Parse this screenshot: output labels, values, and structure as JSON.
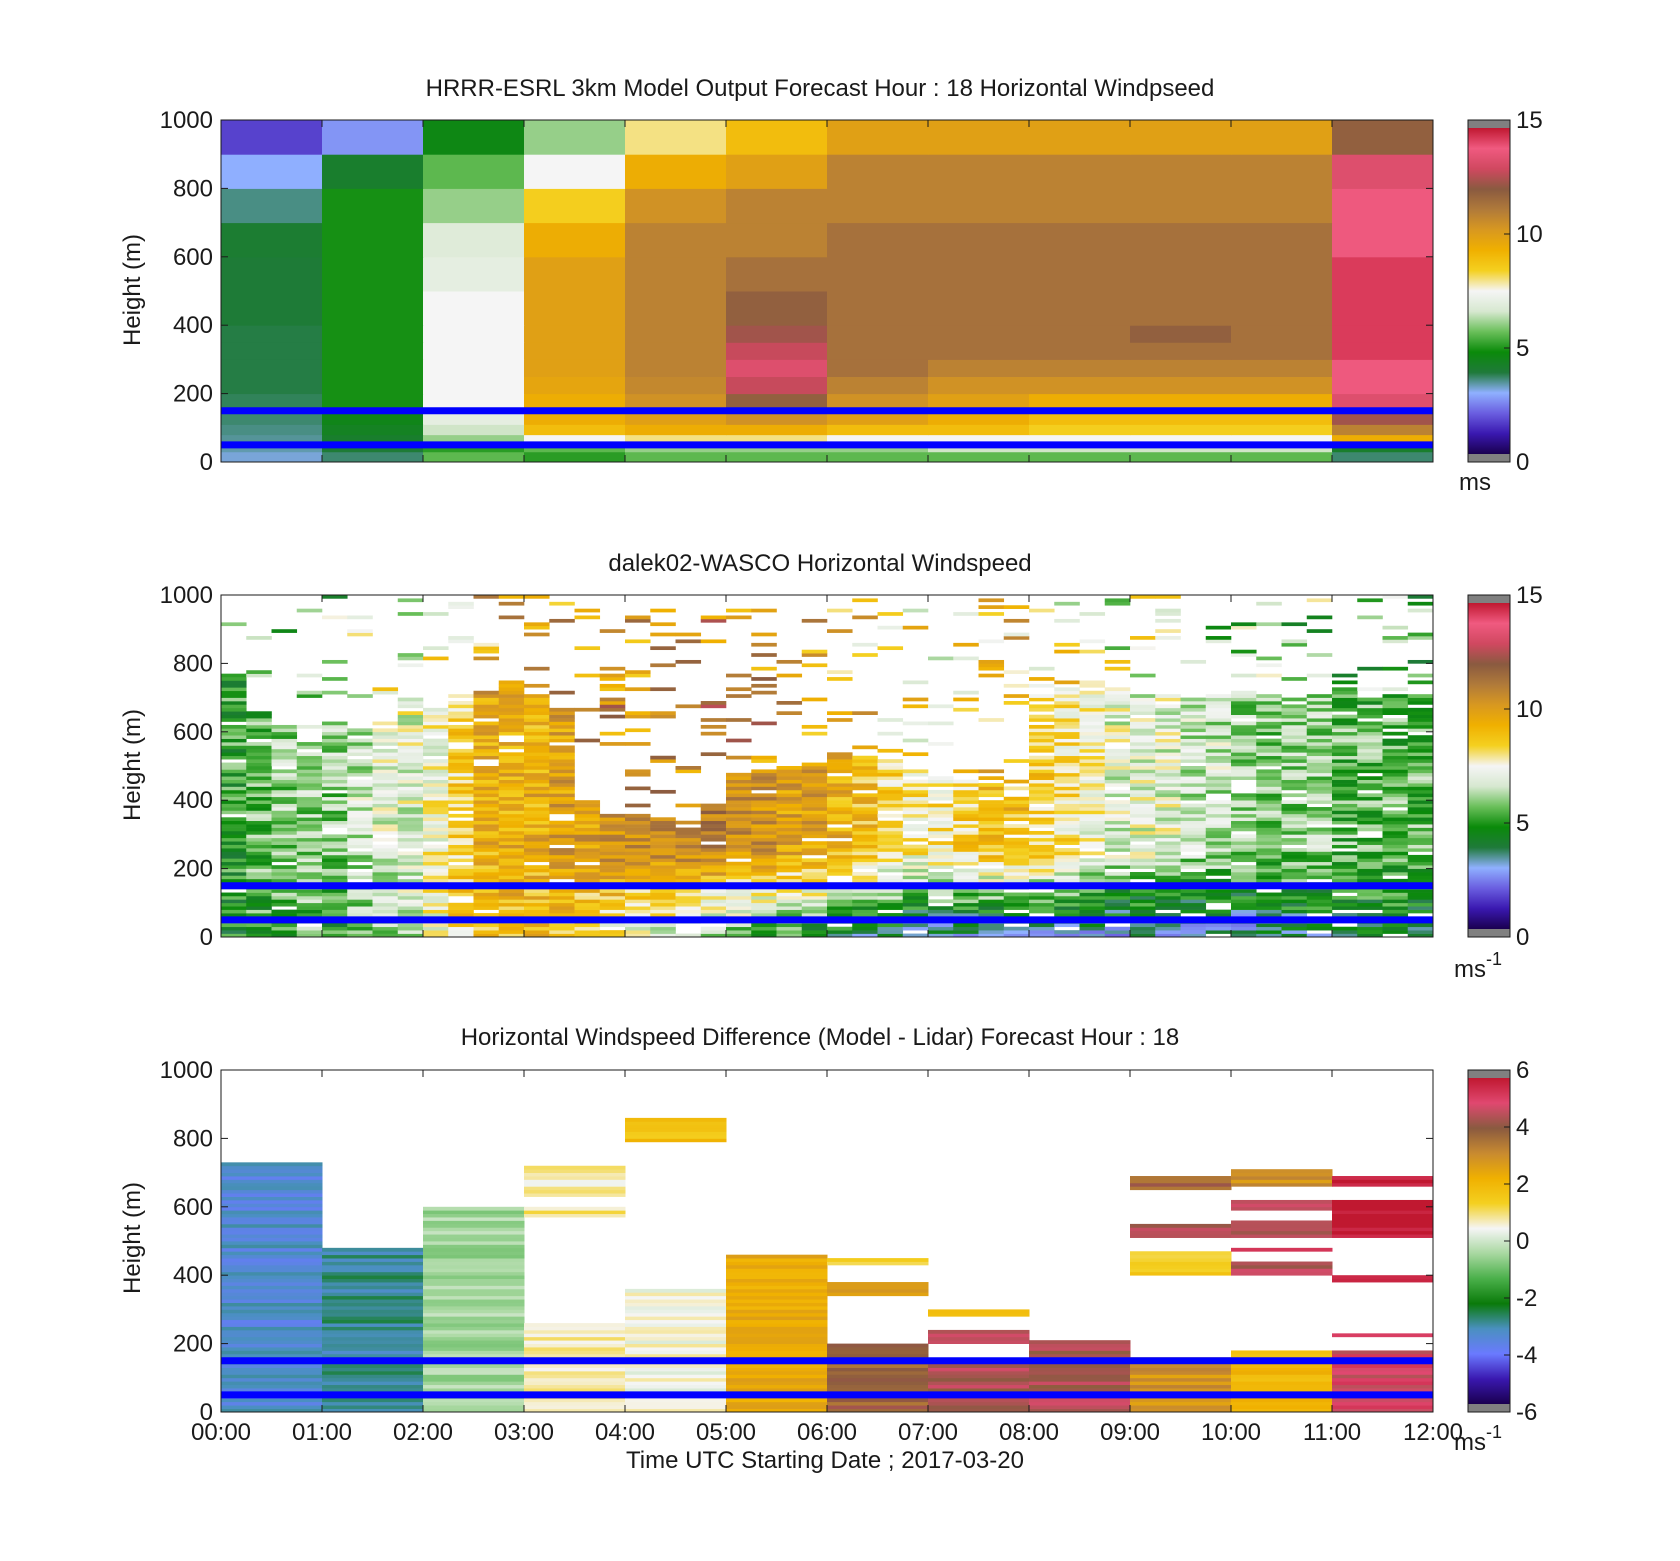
{
  "colors": {
    "overlay_line": "#0000ff",
    "speed_scale": [
      "#1a0050",
      "#3a18b0",
      "#6a5ee0",
      "#8fb0ff",
      "#1f7a3a",
      "#0a8a0a",
      "#6abf5a",
      "#d7e8d0",
      "#f5f5f5",
      "#f4d020",
      "#f0b000",
      "#d89820",
      "#b07a3a",
      "#8a5a40",
      "#d04860",
      "#f05a80",
      "#c01830"
    ],
    "diff_scale": [
      "#1a0050",
      "#3a18b0",
      "#6a7aff",
      "#4a90c0",
      "#0a7a0a",
      "#4ab04a",
      "#a8d8a0",
      "#f5f5f5",
      "#f4d020",
      "#f0b000",
      "#c88a30",
      "#8a5a40",
      "#e04870",
      "#c01830"
    ]
  },
  "chart_data": [
    {
      "type": "heatmap",
      "title": "HRRR-ESRL 3km Model Output   Forecast Hour : 18 Horizontal Windpseed",
      "ylabel": "Height (m)",
      "xlabel": "",
      "x_ticks": [
        "00:00",
        "01:00",
        "02:00",
        "03:00",
        "04:00",
        "05:00",
        "06:00",
        "07:00",
        "08:00",
        "09:00",
        "10:00",
        "11:00",
        "12:00"
      ],
      "xlim": [
        0,
        12
      ],
      "y_ticks": [
        "0",
        "200",
        "400",
        "600",
        "800",
        "1000"
      ],
      "ylim": [
        0,
        1000
      ],
      "colorbar": {
        "ticks": [
          "0",
          "5",
          "10",
          "15"
        ],
        "range": [
          0,
          15
        ],
        "unit": "ms"
      },
      "overlay_heights_m": [
        150,
        50
      ],
      "columns_time_h": [
        0,
        1,
        2,
        3,
        4,
        5,
        6,
        7,
        8,
        9,
        10,
        11
      ],
      "level_tops_m": [
        30,
        50,
        80,
        110,
        150,
        200,
        250,
        300,
        350,
        400,
        500,
        600,
        700,
        800,
        900,
        1000
      ],
      "values_ms": [
        [
          3.0,
          3.5,
          5.5,
          5.0,
          5.5,
          5.5,
          5.5,
          5.5,
          5.5,
          5.5,
          5.5,
          3.5
        ],
        [
          3.2,
          3.8,
          5.0,
          5.5,
          6.0,
          6.0,
          6.0,
          6.5,
          6.5,
          6.5,
          6.5,
          4.0
        ],
        [
          3.3,
          4.0,
          6.0,
          7.5,
          8.0,
          8.0,
          7.5,
          7.5,
          7.5,
          7.5,
          7.5,
          9.5
        ],
        [
          3.4,
          4.2,
          6.5,
          9.0,
          9.5,
          9.5,
          9.0,
          9.0,
          8.5,
          8.5,
          8.5,
          11.0
        ],
        [
          3.5,
          4.4,
          7.0,
          9.5,
          10.0,
          10.5,
          10.0,
          9.5,
          9.0,
          9.0,
          9.0,
          12.5
        ],
        [
          3.6,
          4.8,
          7.5,
          9.5,
          10.5,
          12.0,
          10.5,
          10.0,
          9.5,
          9.5,
          9.5,
          13.5
        ],
        [
          3.7,
          4.8,
          7.5,
          9.8,
          10.8,
          13.0,
          11.0,
          10.5,
          10.5,
          10.5,
          10.5,
          14.0
        ],
        [
          3.7,
          4.8,
          7.5,
          10.0,
          11.0,
          13.5,
          11.5,
          11.0,
          11.0,
          11.0,
          11.0,
          14.0
        ],
        [
          3.7,
          4.8,
          7.5,
          10.0,
          11.0,
          13.0,
          11.5,
          11.5,
          11.5,
          11.5,
          11.5,
          14.5
        ],
        [
          3.7,
          4.8,
          7.5,
          10.0,
          11.0,
          12.5,
          11.5,
          11.5,
          11.5,
          12.0,
          11.5,
          14.5
        ],
        [
          3.8,
          4.8,
          7.5,
          10.0,
          11.0,
          12.0,
          11.5,
          11.5,
          11.5,
          11.5,
          11.5,
          14.5
        ],
        [
          3.8,
          4.8,
          7.0,
          10.0,
          11.0,
          11.5,
          11.5,
          11.5,
          11.5,
          11.5,
          11.5,
          14.5
        ],
        [
          3.9,
          4.8,
          6.8,
          9.5,
          11.0,
          11.0,
          11.5,
          11.5,
          11.5,
          11.5,
          11.5,
          14.0
        ],
        [
          3.4,
          4.8,
          6.0,
          8.5,
          10.5,
          11.0,
          11.0,
          11.0,
          11.0,
          11.0,
          11.0,
          14.0
        ],
        [
          2.8,
          4.0,
          5.5,
          7.5,
          9.5,
          10.0,
          11.0,
          11.0,
          11.0,
          11.0,
          11.0,
          13.5
        ],
        [
          1.5,
          2.5,
          4.5,
          6.0,
          8.0,
          9.0,
          10.0,
          10.0,
          10.0,
          10.0,
          10.0,
          12.0
        ]
      ]
    },
    {
      "type": "heatmap",
      "title": "dalek02-WASCO  Horizontal Windspeed",
      "ylabel": "Height (m)",
      "xlabel": "",
      "x_ticks": [
        "00:00",
        "01:00",
        "02:00",
        "03:00",
        "04:00",
        "05:00",
        "06:00",
        "07:00",
        "08:00",
        "09:00",
        "10:00",
        "11:00",
        "12:00"
      ],
      "xlim": [
        0,
        12
      ],
      "y_ticks": [
        "0",
        "200",
        "400",
        "600",
        "800",
        "1000"
      ],
      "ylim": [
        0,
        1000
      ],
      "colorbar": {
        "ticks": [
          "0",
          "5",
          "10",
          "15"
        ],
        "range": [
          0,
          15
        ],
        "unit": "ms",
        "unit_superscript": "-1"
      },
      "overlay_heights_m": [
        150,
        50
      ],
      "columns_time_h": [
        0,
        0.25,
        0.5,
        0.75,
        1,
        1.25,
        1.5,
        1.75,
        2,
        2.25,
        2.5,
        2.75,
        3,
        3.25,
        3.5,
        3.75,
        4,
        4.25,
        4.5,
        4.75,
        5,
        5.25,
        5.5,
        5.75,
        6,
        6.25,
        6.5,
        6.75,
        7,
        7.25,
        7.5,
        7.75,
        8,
        8.25,
        8.5,
        8.75,
        9,
        9.25,
        9.5,
        9.75,
        10,
        10.25,
        10.5,
        10.75,
        11,
        11.25,
        11.5,
        11.75
      ],
      "data_top_m": [
        760,
        650,
        610,
        560,
        620,
        600,
        620,
        640,
        660,
        680,
        700,
        720,
        700,
        650,
        380,
        360,
        350,
        340,
        330,
        380,
        460,
        480,
        490,
        500,
        530,
        520,
        500,
        480,
        460,
        450,
        440,
        430,
        700,
        720,
        740,
        720,
        700,
        700,
        690,
        700,
        710,
        700,
        690,
        700,
        710,
        700,
        690,
        700
      ],
      "low_level_ms": [
        4.5,
        5.0,
        5.0,
        5.5,
        5.0,
        5.5,
        6.0,
        6.5,
        7.5,
        8.5,
        9.0,
        9.0,
        9.0,
        8.5,
        8.0,
        7.5,
        7.0,
        6.5,
        6.0,
        5.5,
        5.5,
        5.0,
        5.0,
        4.5,
        4.0,
        3.5,
        3.5,
        3.0,
        3.0,
        3.0,
        3.0,
        3.0,
        3.0,
        3.0,
        3.0,
        3.0,
        3.0,
        3.0,
        3.0,
        3.0,
        3.0,
        3.5,
        3.5,
        3.5,
        4.0,
        4.0,
        4.0,
        4.0
      ],
      "upper_level_ms": [
        5.0,
        5.5,
        6.0,
        6.0,
        6.0,
        6.5,
        7.0,
        7.0,
        7.5,
        8.5,
        9.5,
        9.5,
        9.5,
        10.0,
        10.0,
        10.5,
        10.5,
        11.0,
        11.0,
        11.0,
        10.5,
        10.5,
        10.0,
        10.0,
        9.5,
        9.0,
        8.5,
        8.0,
        8.0,
        8.5,
        9.0,
        9.0,
        8.5,
        8.0,
        7.5,
        7.0,
        7.0,
        7.0,
        6.5,
        6.5,
        6.0,
        6.0,
        6.0,
        6.0,
        5.5,
        5.5,
        5.5,
        5.5
      ]
    },
    {
      "type": "heatmap",
      "title": "Horizontal Windspeed Difference (Model - Lidar) Forecast Hour : 18",
      "ylabel": "Height (m)",
      "xlabel": "Time UTC  Starting Date ; 2017-03-20",
      "x_ticks": [
        "00:00",
        "01:00",
        "02:00",
        "03:00",
        "04:00",
        "05:00",
        "06:00",
        "07:00",
        "08:00",
        "09:00",
        "10:00",
        "11:00",
        "12:00"
      ],
      "xlim": [
        0,
        12
      ],
      "y_ticks": [
        "0",
        "200",
        "400",
        "600",
        "800",
        "1000"
      ],
      "ylim": [
        0,
        1000
      ],
      "colorbar": {
        "ticks": [
          "-6",
          "-4",
          "-2",
          "0",
          "2",
          "4",
          "6"
        ],
        "range": [
          -6,
          6
        ],
        "unit": "ms",
        "unit_superscript": "-1"
      },
      "overlay_heights_m": [
        150,
        50
      ],
      "cells": [
        {
          "t0": 0,
          "t1": 1,
          "y0": 0,
          "y1": 730,
          "value": -3.5
        },
        {
          "t0": 1,
          "t1": 2,
          "y0": 0,
          "y1": 480,
          "value": -3.0
        },
        {
          "t0": 2,
          "t1": 3,
          "y0": 0,
          "y1": 600,
          "value": -0.5
        },
        {
          "t0": 3,
          "t1": 4,
          "y0": 0,
          "y1": 260,
          "value": 0.8
        },
        {
          "t0": 3,
          "t1": 4,
          "y0": 630,
          "y1": 720,
          "value": 0.8
        },
        {
          "t0": 3,
          "t1": 4,
          "y0": 570,
          "y1": 600,
          "value": 1.0
        },
        {
          "t0": 4,
          "t1": 5,
          "y0": 790,
          "y1": 860,
          "value": 1.8
        },
        {
          "t0": 4,
          "t1": 5,
          "y0": 0,
          "y1": 360,
          "value": 0.5
        },
        {
          "t0": 5,
          "t1": 6,
          "y0": 0,
          "y1": 460,
          "value": 2.5
        },
        {
          "t0": 6,
          "t1": 7,
          "y0": 0,
          "y1": 200,
          "value": 4.0
        },
        {
          "t0": 6,
          "t1": 7,
          "y0": 340,
          "y1": 380,
          "value": 3.0
        },
        {
          "t0": 6,
          "t1": 7,
          "y0": 430,
          "y1": 450,
          "value": 1.5
        },
        {
          "t0": 7,
          "t1": 8,
          "y0": 0,
          "y1": 150,
          "value": 4.5
        },
        {
          "t0": 7,
          "t1": 8,
          "y0": 200,
          "y1": 240,
          "value": 4.5
        },
        {
          "t0": 7,
          "t1": 8,
          "y0": 280,
          "y1": 300,
          "value": 2.0
        },
        {
          "t0": 8,
          "t1": 9,
          "y0": 0,
          "y1": 210,
          "value": 4.5
        },
        {
          "t0": 9,
          "t1": 10,
          "y0": 0,
          "y1": 160,
          "value": 3.0
        },
        {
          "t0": 9,
          "t1": 10,
          "y0": 400,
          "y1": 470,
          "value": 1.5
        },
        {
          "t0": 9,
          "t1": 10,
          "y0": 510,
          "y1": 550,
          "value": 4.5
        },
        {
          "t0": 9,
          "t1": 10,
          "y0": 650,
          "y1": 690,
          "value": 4.0
        },
        {
          "t0": 10,
          "t1": 11,
          "y0": 0,
          "y1": 180,
          "value": 2.0
        },
        {
          "t0": 10,
          "t1": 11,
          "y0": 400,
          "y1": 440,
          "value": 4.5
        },
        {
          "t0": 10,
          "t1": 11,
          "y0": 470,
          "y1": 480,
          "value": 5.0
        },
        {
          "t0": 10,
          "t1": 11,
          "y0": 510,
          "y1": 560,
          "value": 4.5
        },
        {
          "t0": 10,
          "t1": 11,
          "y0": 590,
          "y1": 620,
          "value": 5.0
        },
        {
          "t0": 10,
          "t1": 11,
          "y0": 660,
          "y1": 710,
          "value": 3.0
        },
        {
          "t0": 11,
          "t1": 12,
          "y0": 0,
          "y1": 180,
          "value": 5.0
        },
        {
          "t0": 11,
          "t1": 12,
          "y0": 220,
          "y1": 230,
          "value": 5.0
        },
        {
          "t0": 11,
          "t1": 12,
          "y0": 380,
          "y1": 400,
          "value": 6.0
        },
        {
          "t0": 11,
          "t1": 12,
          "y0": 510,
          "y1": 620,
          "value": 6.0
        },
        {
          "t0": 11,
          "t1": 12,
          "y0": 660,
          "y1": 690,
          "value": 6.0
        }
      ]
    }
  ]
}
